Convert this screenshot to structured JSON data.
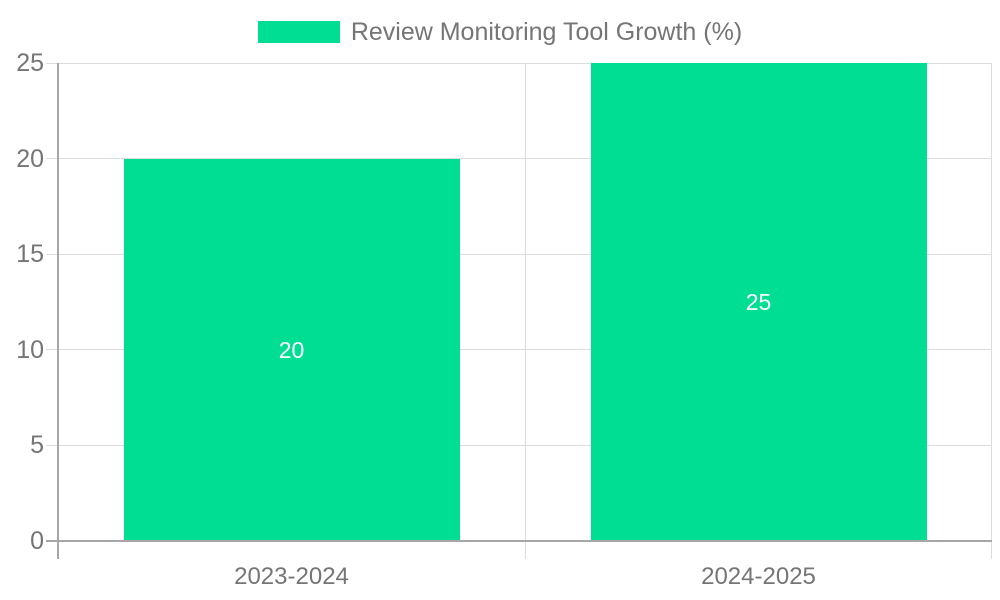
{
  "chart_data": {
    "type": "bar",
    "title": "Review Monitoring Tool Growth (%)",
    "legend_entries": [
      "Review Monitoring Tool Growth (%)"
    ],
    "legend_position": "top-center",
    "categories": [
      "2023-2024",
      "2024-2025"
    ],
    "values": [
      20,
      25
    ],
    "bar_value_labels": [
      "20",
      "25"
    ],
    "xlabel": "",
    "ylabel": "",
    "ylim": [
      0,
      25
    ],
    "yticks": [
      0,
      5,
      10,
      15,
      20,
      25
    ],
    "grid": true,
    "colors": {
      "bar": "#00de94",
      "bar_label_text": "#ffffff",
      "axis_line": "#a6a6a6",
      "grid_line": "#dcdcdc",
      "tick_text": "#757575",
      "background": "#ffffff"
    }
  }
}
